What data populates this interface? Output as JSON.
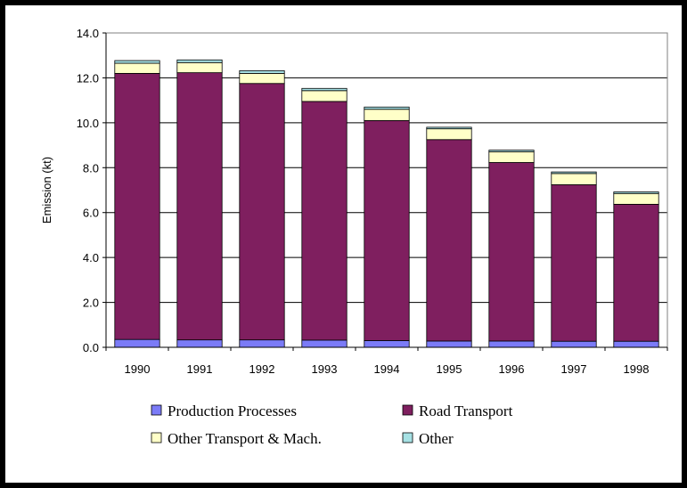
{
  "chart_data": {
    "type": "bar",
    "stacked": true,
    "title": "",
    "xlabel": "",
    "ylabel": "Emission (kt)",
    "ylim": [
      0,
      14
    ],
    "yticks": [
      "0.0",
      "2.0",
      "4.0",
      "6.0",
      "8.0",
      "10.0",
      "12.0",
      "14.0"
    ],
    "grid": true,
    "legend_position": "bottom",
    "categories": [
      "1990",
      "1991",
      "1992",
      "1993",
      "1994",
      "1995",
      "1996",
      "1997",
      "1998"
    ],
    "series": [
      {
        "name": "Production Processes",
        "color": "#7b7bf7",
        "values": [
          0.35,
          0.33,
          0.33,
          0.32,
          0.3,
          0.28,
          0.28,
          0.27,
          0.27
        ]
      },
      {
        "name": "Road Transport",
        "color": "#7f1f5f",
        "values": [
          11.85,
          11.9,
          11.42,
          10.63,
          9.8,
          8.97,
          7.95,
          6.97,
          6.1
        ]
      },
      {
        "name": "Other Transport & Mach.",
        "color": "#ffffc8",
        "values": [
          0.45,
          0.45,
          0.45,
          0.48,
          0.5,
          0.48,
          0.48,
          0.5,
          0.48
        ]
      },
      {
        "name": "Other",
        "color": "#a6e1e4",
        "values": [
          0.12,
          0.12,
          0.12,
          0.1,
          0.1,
          0.07,
          0.07,
          0.07,
          0.07
        ]
      }
    ]
  }
}
